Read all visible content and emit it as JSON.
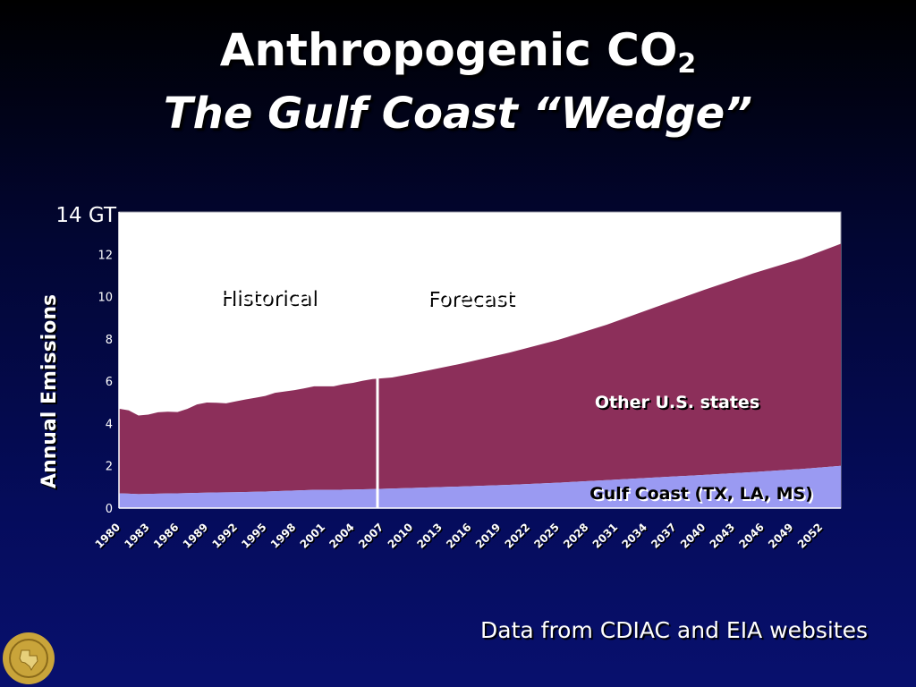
{
  "slide": {
    "title": "Anthropogenic CO",
    "title_subscript": "2",
    "subtitle": "The Gulf Coast “Wedge”",
    "source_note": "Data from CDIAC and EIA websites"
  },
  "colors": {
    "gulf_coast": "#9a9af2",
    "other_states": "#8c2f5a",
    "divider": "#ffffff",
    "seal": "#c9a43a"
  },
  "chart_data": {
    "type": "area",
    "stacked": true,
    "xlabel": "",
    "ylabel": "Annual Emissions",
    "y_top_label": "14 GT",
    "ylim": [
      0,
      14
    ],
    "yticks": [
      "0",
      "2",
      "4",
      "6",
      "8",
      "10",
      "12"
    ],
    "xlim": [
      1980,
      2054
    ],
    "xticks": [
      "1980",
      "1983",
      "1986",
      "1989",
      "1992",
      "1995",
      "1998",
      "2001",
      "2004",
      "2007",
      "2010",
      "2013",
      "2016",
      "2019",
      "2022",
      "2025",
      "2028",
      "2031",
      "2034",
      "2037",
      "2040",
      "2043",
      "2046",
      "2049",
      "2052"
    ],
    "divider_x": 2006.5,
    "period_labels": [
      "Historical",
      "Forecast"
    ],
    "series": [
      {
        "name": "Gulf Coast (TX, LA, MS)",
        "x": [
          1980,
          1982,
          1984,
          1986,
          1988,
          1990,
          1992,
          1994,
          1996,
          1998,
          2000,
          2002,
          2004,
          2006,
          2010,
          2015,
          2020,
          2025,
          2030,
          2035,
          2040,
          2045,
          2050,
          2054
        ],
        "values": [
          0.7,
          0.66,
          0.68,
          0.7,
          0.72,
          0.74,
          0.75,
          0.77,
          0.8,
          0.83,
          0.86,
          0.86,
          0.88,
          0.9,
          0.95,
          1.02,
          1.1,
          1.2,
          1.32,
          1.45,
          1.57,
          1.7,
          1.85,
          2.0
        ]
      },
      {
        "name": "Other U.S. states",
        "x": [
          1980,
          1981,
          1982,
          1983,
          1984,
          1985,
          1986,
          1987,
          1988,
          1989,
          1990,
          1991,
          1992,
          1993,
          1994,
          1995,
          1996,
          1997,
          1998,
          1999,
          2000,
          2001,
          2002,
          2003,
          2004,
          2005,
          2006,
          2008,
          2010,
          2015,
          2020,
          2025,
          2030,
          2035,
          2040,
          2045,
          2050,
          2054
        ],
        "values": [
          4.0,
          3.94,
          3.72,
          3.75,
          3.85,
          3.87,
          3.84,
          3.98,
          4.18,
          4.26,
          4.24,
          4.21,
          4.3,
          4.38,
          4.45,
          4.52,
          4.65,
          4.7,
          4.75,
          4.82,
          4.9,
          4.9,
          4.9,
          4.99,
          5.04,
          5.13,
          5.2,
          5.25,
          5.4,
          5.8,
          6.25,
          6.75,
          7.35,
          8.05,
          8.75,
          9.4,
          9.95,
          10.5
        ]
      }
    ],
    "legend": "inline labels on areas"
  }
}
